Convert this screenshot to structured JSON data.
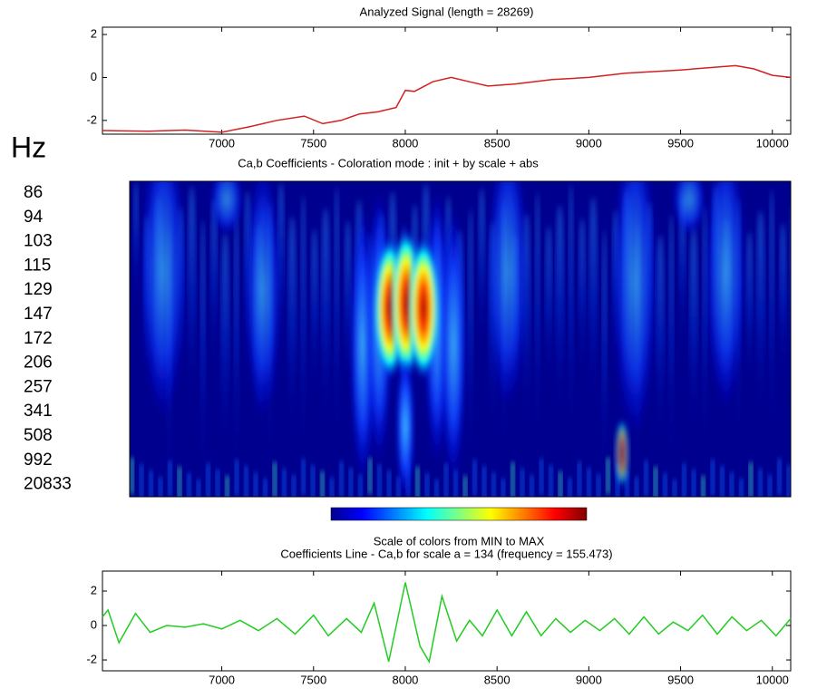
{
  "chart_data": [
    {
      "type": "line",
      "title": "Analyzed Signal  (length = 28269)",
      "color": "#d42020",
      "xlim": [
        6350,
        10100
      ],
      "ylim": [
        -2.64,
        2.34
      ],
      "xticks": [
        7000,
        7500,
        8000,
        8500,
        9000,
        9500,
        10000
      ],
      "yticks": [
        -2,
        0,
        2
      ],
      "x": [
        6350,
        6600,
        6800,
        7000,
        7150,
        7300,
        7450,
        7550,
        7650,
        7750,
        7850,
        7950,
        8000,
        8050,
        8150,
        8250,
        8350,
        8450,
        8600,
        8800,
        9000,
        9200,
        9500,
        9800,
        9900,
        10000,
        10100
      ],
      "values": [
        -2.47,
        -2.5,
        -2.45,
        -2.55,
        -2.3,
        -2.0,
        -1.8,
        -2.15,
        -2.0,
        -1.7,
        -1.6,
        -1.4,
        -0.6,
        -0.65,
        -0.2,
        0.0,
        -0.2,
        -0.4,
        -0.3,
        -0.1,
        0.0,
        0.2,
        0.35,
        0.55,
        0.4,
        0.1,
        0.0
      ]
    },
    {
      "type": "scalogram",
      "title": "Ca,b Coefficients  - Coloration mode : init + by scale + abs",
      "ylabel": "Hz",
      "y_labels": [
        "86",
        "94",
        "103",
        "115",
        "129",
        "147",
        "172",
        "206",
        "257",
        "341",
        "508",
        "992",
        "20833"
      ],
      "colorbar_title": "Scale of colors from MIN to MAX"
    },
    {
      "type": "line",
      "title": "Coefficients Line - Ca,b   for scale a = 134  (frequency = 155.473)",
      "color": "#22cc22",
      "xlim": [
        6350,
        10100
      ],
      "ylim": [
        -2.63,
        3.16
      ],
      "xticks": [
        7000,
        7500,
        8000,
        8500,
        9000,
        9500,
        10000
      ],
      "yticks": [
        -2,
        0,
        2
      ],
      "x": [
        6350,
        6380,
        6440,
        6530,
        6610,
        6700,
        6800,
        6900,
        7000,
        7100,
        7200,
        7300,
        7400,
        7500,
        7580,
        7680,
        7760,
        7830,
        7910,
        8000,
        8080,
        8130,
        8200,
        8280,
        8350,
        8420,
        8500,
        8580,
        8660,
        8740,
        8820,
        8900,
        8980,
        9060,
        9140,
        9220,
        9300,
        9380,
        9460,
        9540,
        9620,
        9700,
        9780,
        9860,
        9940,
        10020,
        10100
      ],
      "values": [
        0.5,
        0.9,
        -1.0,
        0.7,
        -0.4,
        0.0,
        -0.1,
        0.1,
        -0.2,
        0.3,
        -0.3,
        0.4,
        -0.5,
        0.6,
        -0.6,
        0.4,
        -0.4,
        1.3,
        -2.1,
        2.5,
        -1.2,
        -2.1,
        1.7,
        -0.9,
        0.3,
        -0.6,
        0.9,
        -0.6,
        0.8,
        -0.6,
        0.4,
        -0.4,
        0.3,
        -0.3,
        0.4,
        -0.5,
        0.5,
        -0.5,
        0.2,
        -0.3,
        0.6,
        -0.5,
        0.5,
        -0.3,
        0.3,
        -0.6,
        0.4
      ]
    }
  ]
}
